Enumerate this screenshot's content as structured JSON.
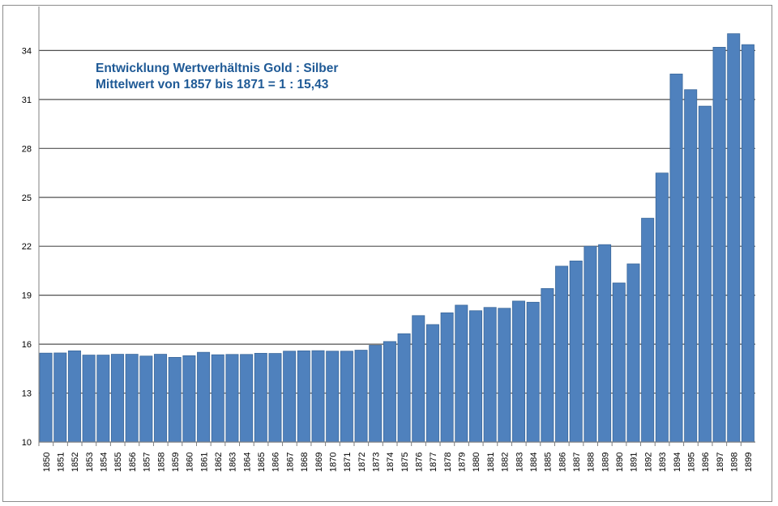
{
  "chart_data": {
    "type": "bar",
    "title": [
      "Entwicklung Wertverhältnis Gold : Silber",
      "Mittelwert von 1857 bis 1871 = 1 : 15,43"
    ],
    "xlabel": "",
    "ylabel": "",
    "ylim": [
      10,
      36.7
    ],
    "yticks": [
      10,
      13,
      16,
      19,
      22,
      25,
      28,
      31,
      34
    ],
    "grid": true,
    "bar_color": "#4f81bd",
    "title_color": "#1f5a96",
    "categories": [
      "1850",
      "1851",
      "1852",
      "1853",
      "1854",
      "1855",
      "1856",
      "1857",
      "1858",
      "1859",
      "1860",
      "1861",
      "1862",
      "1863",
      "1864",
      "1865",
      "1866",
      "1867",
      "1868",
      "1869",
      "1870",
      "1871",
      "1872",
      "1873",
      "1874",
      "1875",
      "1876",
      "1877",
      "1878",
      "1879",
      "1880",
      "1881",
      "1882",
      "1883",
      "1884",
      "1885",
      "1886",
      "1887",
      "1888",
      "1889",
      "1890",
      "1891",
      "1892",
      "1893",
      "1894",
      "1895",
      "1896",
      "1897",
      "1898",
      "1899"
    ],
    "values": [
      15.45,
      15.46,
      15.59,
      15.33,
      15.33,
      15.38,
      15.38,
      15.27,
      15.38,
      15.19,
      15.29,
      15.5,
      15.35,
      15.37,
      15.37,
      15.44,
      15.43,
      15.57,
      15.59,
      15.6,
      15.57,
      15.57,
      15.63,
      15.93,
      16.16,
      16.64,
      17.75,
      17.2,
      17.92,
      18.39,
      18.05,
      18.25,
      18.2,
      18.64,
      18.57,
      19.41,
      20.78,
      21.1,
      22.0,
      22.1,
      19.75,
      20.92,
      23.72,
      26.49,
      32.56,
      31.6,
      30.59,
      34.2,
      35.03,
      34.36
    ]
  }
}
